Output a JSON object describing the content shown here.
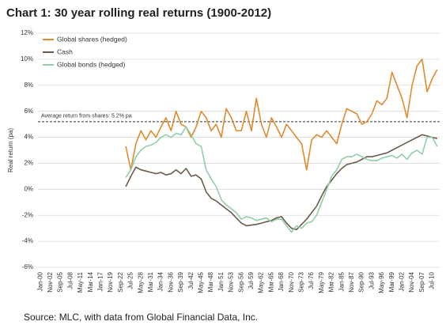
{
  "chart_data": {
    "type": "line",
    "title": "Chart 1: 30 year rolling real returns (1900-2012)",
    "y_label": "Real return (pa)",
    "source": "Source: MLC, with data from Global Financial Data, Inc.",
    "reference_line": {
      "value": 5.2,
      "label": "Average return from shares: 5.2% pa"
    },
    "categories": [
      "Jan-00",
      null,
      "Nov-02",
      null,
      "Sep-05",
      null,
      "Jul-08",
      null,
      "May-11",
      null,
      "Mar-14",
      null,
      "Jan-17",
      null,
      "Nov-19",
      null,
      "Sep-22",
      null,
      "Jul-25",
      null,
      "May-28",
      null,
      "Mar-31",
      null,
      "Jan-34",
      null,
      "Nov-36",
      null,
      "Sep-39",
      null,
      "Jul-42",
      null,
      "May-45",
      null,
      "Mar-48",
      null,
      "Jan-51",
      null,
      "Nov-53",
      null,
      "Sep-56",
      null,
      "Jul-59",
      null,
      "May-62",
      null,
      "Mar-65",
      null,
      "Jan-68",
      null,
      "Nov-70",
      null,
      "Sep-73",
      null,
      "Jul-76",
      null,
      "May-79",
      null,
      "Mar-82",
      null,
      "Jan-85",
      null,
      "Nov-87",
      null,
      "Sep-90",
      null,
      "Jul-93",
      null,
      "May-96",
      null,
      "Mar-99",
      null,
      "Jan-02",
      null,
      "Nov-04",
      null,
      "Sep-07",
      null,
      "Jul-10",
      null
    ],
    "series": [
      {
        "name": "Global shares (hedged)",
        "color": "#e08a2e",
        "values": [
          null,
          null,
          null,
          null,
          null,
          null,
          null,
          null,
          null,
          null,
          null,
          null,
          null,
          null,
          null,
          null,
          null,
          3.3,
          1.5,
          3.5,
          4.5,
          3.8,
          4.5,
          4.0,
          4.8,
          5.5,
          4.5,
          6.0,
          5.0,
          4.8,
          4.0,
          4.8,
          6.0,
          5.5,
          4.5,
          5.0,
          4.0,
          6.2,
          5.5,
          4.5,
          4.5,
          6.0,
          4.5,
          7.0,
          5.0,
          4.0,
          5.5,
          4.8,
          4.0,
          5.0,
          4.5,
          4.0,
          3.5,
          1.5,
          3.8,
          4.2,
          4.0,
          4.5,
          4.0,
          3.5,
          5.0,
          6.2,
          6.0,
          5.8,
          5.0,
          5.2,
          5.8,
          6.8,
          6.5,
          7.0,
          9.0,
          8.0,
          7.0,
          5.5,
          8.0,
          9.5,
          10.0,
          7.5,
          8.5,
          9.2
        ]
      },
      {
        "name": "Cash",
        "color": "#6b5a4a",
        "values": [
          null,
          null,
          null,
          null,
          null,
          null,
          null,
          null,
          null,
          null,
          null,
          null,
          null,
          null,
          null,
          null,
          null,
          0.2,
          1.0,
          1.7,
          1.5,
          1.4,
          1.3,
          1.2,
          1.3,
          1.1,
          1.2,
          1.5,
          1.2,
          1.6,
          1.0,
          1.1,
          0.8,
          -0.2,
          -0.7,
          -0.9,
          -1.2,
          -1.5,
          -1.8,
          -2.2,
          -2.6,
          -2.8,
          -2.75,
          -2.7,
          -2.6,
          -2.5,
          -2.4,
          -2.2,
          -2.1,
          -2.6,
          -3.0,
          -3.1,
          -2.7,
          -2.3,
          -1.8,
          -1.3,
          -0.5,
          0.2,
          0.7,
          1.2,
          1.6,
          1.9,
          2.0,
          2.1,
          2.3,
          2.5,
          2.5,
          2.6,
          2.7,
          2.8,
          3.0,
          3.2,
          3.4,
          3.6,
          3.8,
          4.0,
          4.2,
          4.1,
          4.0,
          3.9
        ]
      },
      {
        "name": "Global bonds (hedged)",
        "color": "#8fcfa8",
        "values": [
          null,
          null,
          null,
          null,
          null,
          null,
          null,
          null,
          null,
          null,
          null,
          null,
          null,
          null,
          null,
          null,
          null,
          0.9,
          1.5,
          2.5,
          3.0,
          3.3,
          3.4,
          3.6,
          4.0,
          4.2,
          4.0,
          4.3,
          4.2,
          4.8,
          4.2,
          3.5,
          3.3,
          1.5,
          0.8,
          0.2,
          -0.8,
          -1.2,
          -1.5,
          -1.8,
          -2.3,
          -2.1,
          -2.2,
          -2.4,
          -2.3,
          -2.2,
          -2.5,
          -2.3,
          -2.3,
          -2.8,
          -3.3,
          -2.8,
          -3.0,
          -2.6,
          -2.5,
          -2.0,
          -1.0,
          0.0,
          1.0,
          1.5,
          2.3,
          2.5,
          2.5,
          2.7,
          2.5,
          2.3,
          2.2,
          2.2,
          2.4,
          2.5,
          2.6,
          2.4,
          2.7,
          2.3,
          2.8,
          3.0,
          2.7,
          4.0,
          4.0,
          3.3
        ]
      }
    ],
    "ylim": [
      -6,
      12
    ],
    "yticks": [
      {
        "value": -6,
        "label": "-6%"
      },
      {
        "value": -4,
        "label": "-4%"
      },
      {
        "value": -2,
        "label": "-2%"
      },
      {
        "value": 0,
        "label": "0%"
      },
      {
        "value": 2,
        "label": "2%"
      },
      {
        "value": 4,
        "label": "4%"
      },
      {
        "value": 6,
        "label": "6%"
      },
      {
        "value": 8,
        "label": "8%"
      },
      {
        "value": 10,
        "label": "10%"
      },
      {
        "value": 12,
        "label": "12%"
      }
    ],
    "grid": true,
    "legend": "top-left"
  }
}
